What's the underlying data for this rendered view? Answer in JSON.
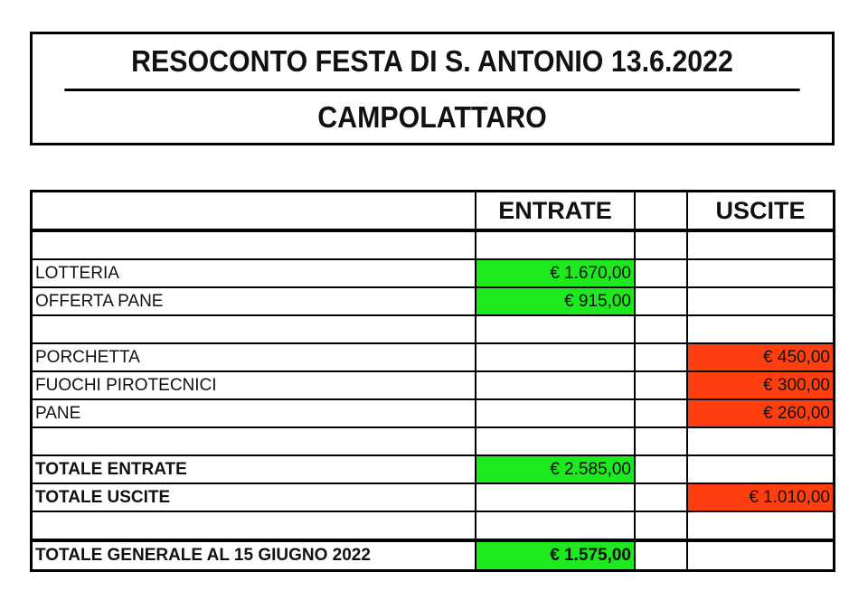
{
  "title": {
    "line1": "RESOCONTO FESTA DI S. ANTONIO 13.6.2022",
    "line2": "CAMPOLATTARO"
  },
  "table": {
    "headers": {
      "entrate": "ENTRATE",
      "uscite": "USCITE"
    },
    "rows": [
      {
        "label": "LOTTERIA",
        "entrate": "€ 1.670,00",
        "uscite": ""
      },
      {
        "label": "OFFERTA PANE",
        "entrate": "€ 915,00",
        "uscite": ""
      },
      {
        "label": "PORCHETTA",
        "entrate": "",
        "uscite": "€ 450,00"
      },
      {
        "label": "FUOCHI PIROTECNICI",
        "entrate": "",
        "uscite": "€ 300,00"
      },
      {
        "label": "PANE",
        "entrate": "",
        "uscite": "€ 260,00"
      },
      {
        "label": "TOTALE ENTRATE",
        "entrate": "€ 2.585,00",
        "uscite": ""
      },
      {
        "label": "TOTALE USCITE",
        "entrate": "",
        "uscite": "€ 1.010,00"
      },
      {
        "label": "TOTALE GENERALE AL 15 GIUGNO 2022",
        "entrate": "€ 1.575,00",
        "uscite": ""
      }
    ]
  },
  "colors": {
    "income": "#1ee81e",
    "expense": "#ff3f0f"
  }
}
